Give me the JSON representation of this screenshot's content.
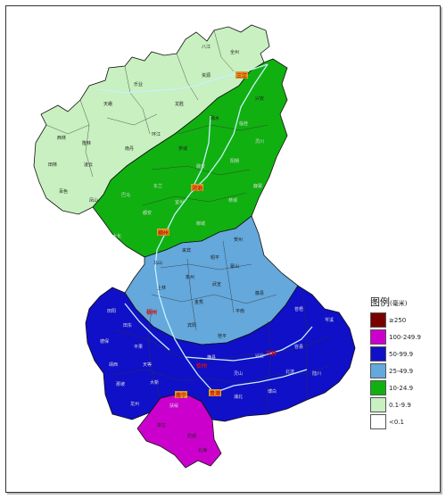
{
  "legend": {
    "title": "图例",
    "unit": "(毫米)",
    "items": [
      {
        "label": "≥250",
        "color": "#7a0000"
      },
      {
        "label": "100-249.9",
        "color": "#cc00cc"
      },
      {
        "label": "50-99.9",
        "color": "#1010c8"
      },
      {
        "label": "25-49.9",
        "color": "#64a8dc"
      },
      {
        "label": "10-24.9",
        "color": "#10b010"
      },
      {
        "label": "0.1-9.9",
        "color": "#c8f0c0"
      },
      {
        "label": "<0.1",
        "color": "#ffffff"
      }
    ]
  },
  "places": {
    "san_jiang": "三江",
    "he_chi": "河池",
    "liu_zhou": "柳州",
    "wu_zhou": "梧州",
    "nan_ning": "南宁",
    "gui_gang": "贵港",
    "hu_zhou": "湖州",
    "lin_gui": "临桂",
    "ling_chuan": "灵川",
    "yang_shuo": "阳朔",
    "gong_cheng": "恭城",
    "he_zhou": "贺州",
    "zhao_ping": "昭平",
    "meng_shan": "蒙山",
    "teng_xian": "藤县",
    "cang_wu": "苍梧",
    "cen_xi": "岑溪",
    "lai_bin": "来宾",
    "wu_xuan": "武宣",
    "xiang_zhou": "象州",
    "jin_xiu": "金秀",
    "gui_ping": "桂平",
    "ping_nan": "平南",
    "heng_xian": "横县",
    "bin_yang": "宾阳",
    "shang_lin": "上林",
    "ma_shan": "马山",
    "wu_ming": "武鸣",
    "long_an": "隆安",
    "fu_sui": "扶绥",
    "chong_zuo": "崇左",
    "qin_zhou": "钦州",
    "bei_hai": "北海",
    "fang_cheng": "防城",
    "bo_bai": "博白",
    "lu_chuan": "陆川",
    "bei_liu": "北流",
    "yu_lin": "玉林",
    "rong_xian": "容县",
    "xing_ye": "兴业",
    "pu_bei": "浦北",
    "ling_shan": "灵山",
    "tian_e": "天峨",
    "nan_dan": "南丹",
    "dong_lan": "东兰",
    "ba_ma": "巴马",
    "du_an": "都安",
    "da_hua": "大化",
    "yi_zhou": "宜州",
    "luo_cheng": "罗城",
    "huan_jiang": "环江",
    "rong_shui": "融水",
    "rong_an": "融安",
    "lu_zhai": "鹿寨",
    "liu_cheng": "柳城",
    "long_sheng": "龙胜",
    "zi_yuan": "资源",
    "quan_zhou": "全州",
    "xing_an": "兴安",
    "ba_jiang": "八江",
    "feng_shan": "凤山",
    "ling_yun": "凌云",
    "le_ye": "乐业",
    "tian_lin": "田林",
    "xi_lin": "西林",
    "long_lin": "隆林",
    "tian_yang": "田阳",
    "tian_dong": "田东",
    "bai_se": "百色",
    "de_bao": "德保",
    "jing_xi": "靖西",
    "na_po": "那坡",
    "tian_deng": "天等",
    "da_xin": "大新",
    "long_zhou": "龙州",
    "ping_guo": "平果"
  }
}
